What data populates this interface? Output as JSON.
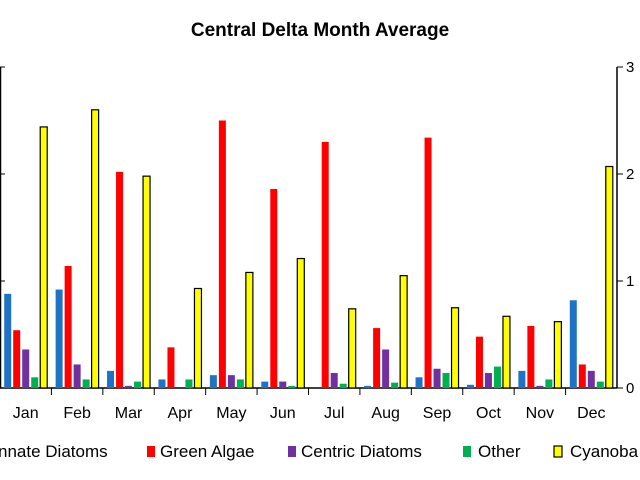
{
  "chart_data": {
    "type": "bar",
    "title": "Central Delta Month Average",
    "categories": [
      "Jan",
      "Feb",
      "Mar",
      "Apr",
      "May",
      "Jun",
      "Jul",
      "Aug",
      "Sep",
      "Oct",
      "Nov",
      "Dec"
    ],
    "right_axis_ticks": [
      "3",
      "2",
      "1",
      "0"
    ],
    "legend_position": "bottom",
    "series": [
      {
        "name": "Pinnate Diatoms",
        "legend_label": "nnate Diatoms",
        "color": "#1f73c4",
        "axis": "left",
        "values": [
          0.44,
          0.46,
          0.08,
          0.04,
          0.06,
          0.03,
          0,
          0.01,
          0.05,
          0.015,
          0.08,
          0.41
        ]
      },
      {
        "name": "Green Algae",
        "legend_label": "Green Algae",
        "color": "#ff0000",
        "axis": "left",
        "values": [
          0.27,
          0.57,
          1.01,
          0.19,
          1.25,
          0.93,
          1.15,
          0.28,
          1.17,
          0.24,
          0.29,
          0.11
        ]
      },
      {
        "name": "Centric Diatoms",
        "legend_label": "Centric Diatoms",
        "color": "#7030a0",
        "axis": "left",
        "values": [
          0.18,
          0.11,
          0.01,
          0,
          0.06,
          0.03,
          0.07,
          0.18,
          0.09,
          0.07,
          0.01,
          0.08
        ]
      },
      {
        "name": "Other",
        "legend_label": "Other",
        "color": "#00b050",
        "axis": "left",
        "values": [
          0.05,
          0.04,
          0.03,
          0.04,
          0.04,
          0.01,
          0.02,
          0.025,
          0.07,
          0.1,
          0.04,
          0.03
        ]
      },
      {
        "name": "Cyanobacteria",
        "legend_label": "Cyanoba",
        "color": "#ffff00",
        "axis": "right",
        "values": [
          2.44,
          2.6,
          1.98,
          0.93,
          1.08,
          1.21,
          0.74,
          1.05,
          0.75,
          0.67,
          0.62,
          2.07
        ]
      }
    ],
    "y_left_range": [
      0,
      1.5
    ],
    "y_right_range": [
      0,
      3
    ]
  }
}
